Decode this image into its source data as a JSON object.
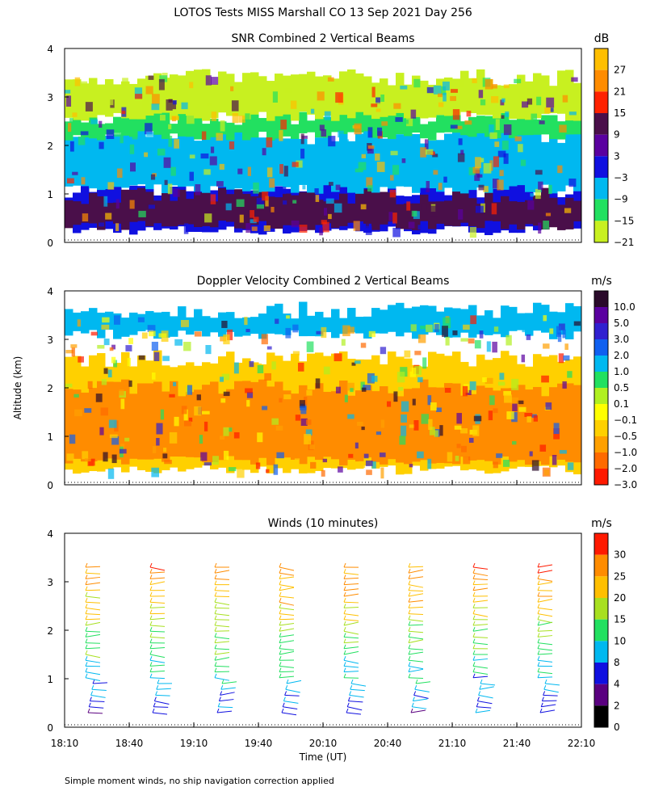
{
  "header": {
    "title": "LOTOS Tests MISS Marshall CO  13 Sep 2021 Day 256",
    "ylabel": "Altitude (km)",
    "xlabel": "Time (UT)",
    "footnote": "Simple moment winds, no ship navigation correction applied"
  },
  "chart_data": [
    {
      "type": "heatmap",
      "title": "SNR Combined 2 Vertical Beams",
      "ylim": [
        0,
        4
      ],
      "yticks": [
        "0",
        "1",
        "2",
        "3",
        "4"
      ],
      "colorbar": {
        "unit": "dB",
        "labels": [
          "27",
          "21",
          "15",
          "9",
          "3",
          "−3",
          "−9",
          "−15",
          "−21"
        ],
        "colors": [
          "#ffbf00",
          "#ff8c00",
          "#ff2200",
          "#4a0f4a",
          "#5a00a0",
          "#1010e0",
          "#00b8f0",
          "#22e060",
          "#c8f020"
        ]
      },
      "bands": [
        {
          "from": 0.25,
          "to": 1.1,
          "color": "#1010e0"
        },
        {
          "from": 0.35,
          "to": 0.95,
          "color": "#4a0f4a"
        },
        {
          "from": 1.1,
          "to": 2.2,
          "color": "#00b8f0"
        },
        {
          "from": 2.2,
          "to": 2.6,
          "color": "#22e060"
        },
        {
          "from": 2.6,
          "to": 3.4,
          "color": "#c8f020"
        }
      ]
    },
    {
      "type": "heatmap",
      "title": "Doppler Velocity Combined 2 Vertical Beams",
      "ylim": [
        0,
        4
      ],
      "yticks": [
        "0",
        "1",
        "2",
        "3",
        "4"
      ],
      "colorbar": {
        "unit": "m/s",
        "labels": [
          "10.0",
          "5.0",
          "3.0",
          "2.0",
          "1.0",
          "0.5",
          "0.1",
          "−0.1",
          "−0.5",
          "−1.0",
          "−2.0",
          "−3.0"
        ],
        "colors": [
          "#2a0a2a",
          "#5a00a0",
          "#3020d0",
          "#1060f0",
          "#00b8f0",
          "#22e060",
          "#b0f020",
          "#ffff00",
          "#ffd000",
          "#ffa000",
          "#ff6a00",
          "#ff1a00"
        ]
      },
      "bands": [
        {
          "from": 0.3,
          "to": 2.6,
          "color": "#ffd000"
        },
        {
          "from": 0.5,
          "to": 2.0,
          "color": "#ff8c00"
        },
        {
          "from": 3.1,
          "to": 3.6,
          "color": "#00b8f0"
        }
      ]
    },
    {
      "type": "wind_barbs",
      "title": "Winds (10 minutes)",
      "ylim": [
        0,
        4
      ],
      "yticks": [
        "0",
        "1",
        "2",
        "3",
        "4"
      ],
      "colorbar": {
        "unit": "m/s",
        "labels": [
          "30",
          "25",
          "20",
          "15",
          "10",
          "8",
          "4",
          "2",
          "0"
        ],
        "colors": [
          "#ff1a00",
          "#ff8c00",
          "#ffbf00",
          "#a8e020",
          "#22e060",
          "#00b8f0",
          "#1010e0",
          "#5a0080",
          "#000000"
        ]
      },
      "x_ticks": [
        "18:10",
        "18:40",
        "19:10",
        "19:40",
        "20:10",
        "20:40",
        "21:10",
        "21:40",
        "22:10"
      ],
      "profile_times": [
        "18:25",
        "18:55",
        "19:25",
        "19:55",
        "20:25",
        "20:55",
        "21:25",
        "21:55"
      ]
    }
  ]
}
